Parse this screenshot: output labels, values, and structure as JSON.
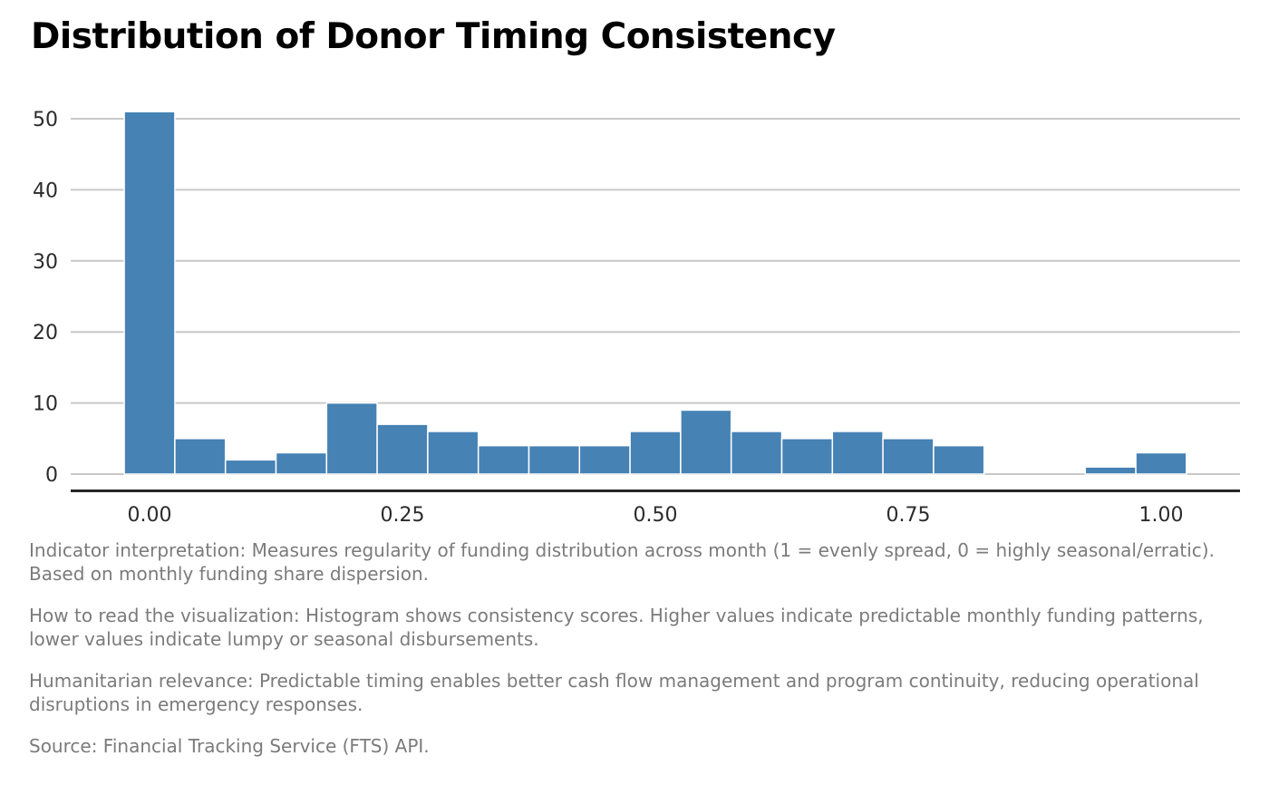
{
  "page": {
    "title": "Distribution of Donor Timing Consistency"
  },
  "chart_data": {
    "type": "bar",
    "subtype": "histogram",
    "title": "Distribution of Donor Timing Consistency",
    "xlabel": "",
    "ylabel": "",
    "bin_width": 0.05,
    "bin_centers": [
      0.0,
      0.05,
      0.1,
      0.15,
      0.2,
      0.25,
      0.3,
      0.35,
      0.4,
      0.45,
      0.5,
      0.55,
      0.6,
      0.65,
      0.7,
      0.75,
      0.8,
      0.85,
      0.9,
      0.95,
      1.0
    ],
    "counts": [
      51,
      5,
      2,
      3,
      10,
      7,
      6,
      4,
      4,
      4,
      6,
      9,
      6,
      5,
      6,
      5,
      4,
      0,
      0,
      1,
      3
    ],
    "x_ticks": [
      {
        "value": 0.0,
        "label": "0.00"
      },
      {
        "value": 0.25,
        "label": "0.25"
      },
      {
        "value": 0.5,
        "label": "0.50"
      },
      {
        "value": 0.75,
        "label": "0.75"
      },
      {
        "value": 1.0,
        "label": "1.00"
      }
    ],
    "y_ticks": [
      {
        "value": 0,
        "label": "0"
      },
      {
        "value": 10,
        "label": "10"
      },
      {
        "value": 20,
        "label": "20"
      },
      {
        "value": 30,
        "label": "30"
      },
      {
        "value": 40,
        "label": "40"
      },
      {
        "value": 50,
        "label": "50"
      }
    ],
    "xlim": [
      -0.078,
      1.078
    ],
    "ylim": [
      0,
      53
    ],
    "grid": "horizontal",
    "legend": "none",
    "colors": {
      "bar_fill": "#4682b4",
      "bar_edge": "#ffffff",
      "gridline": "#c9c9c9",
      "axis_line": "#262626",
      "tick_label": "#2b2b2b",
      "caption_text": "#7b7b7b",
      "title_text": "#000000",
      "background": "#ffffff"
    }
  },
  "captions": {
    "indicator": "Indicator interpretation: Measures regularity of funding distribution across month (1 = evenly spread, 0 = highly seasonal/erratic). Based on monthly funding share dispersion.",
    "how_to_read": "How to read the visualization: Histogram shows consistency scores. Higher values indicate predictable monthly funding patterns, lower values indicate lumpy or seasonal disbursements.",
    "relevance": "Humanitarian relevance: Predictable timing enables better cash flow management and program continuity, reducing operational disruptions in emergency responses.",
    "source": "Source: Financial Tracking Service (FTS) API."
  }
}
